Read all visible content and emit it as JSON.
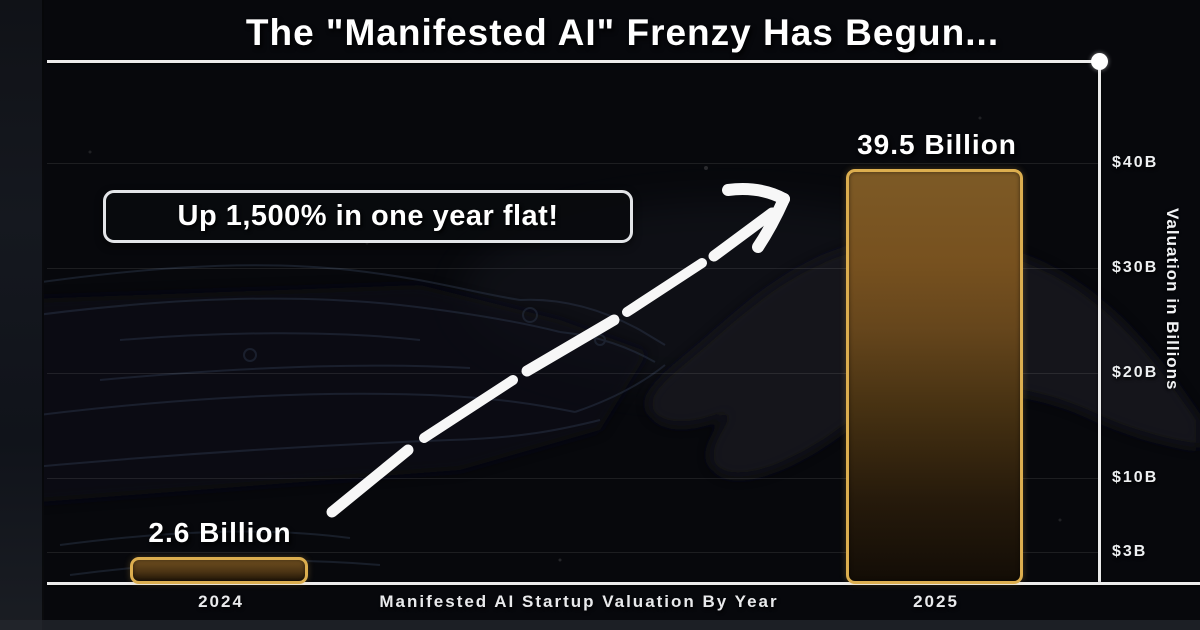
{
  "title": "The \"Manifested AI\" Frenzy Has Begun...",
  "annotation": {
    "label": "Up 1,500% in one year flat!"
  },
  "colors": {
    "background": "#07080c",
    "axis": "#ececec",
    "bar_border": "#dcae4f",
    "bar_fill_top": "#7d5a26",
    "bar_fill_bottom": "#130d06",
    "text": "#ffffff"
  },
  "chart_data": {
    "type": "bar",
    "title": "The \"Manifested AI\" Frenzy Has Begun...",
    "categories": [
      "2024",
      "2025"
    ],
    "values": [
      2.6,
      39.5
    ],
    "bar_labels": [
      "2.6 Billion",
      "39.5 Billion"
    ],
    "xlabel": "Manifested AI Startup Valuation By Year",
    "ylabel": "Valuation in Billions",
    "y_ticks": [
      "$40B",
      "$30B",
      "$20B",
      "$10B",
      "$3B"
    ],
    "y_tick_values": [
      40,
      30,
      20,
      10,
      3
    ],
    "ylim": [
      0,
      50
    ],
    "grid": true,
    "legend": null,
    "annotation": "Up 1,500% in one year flat!"
  }
}
